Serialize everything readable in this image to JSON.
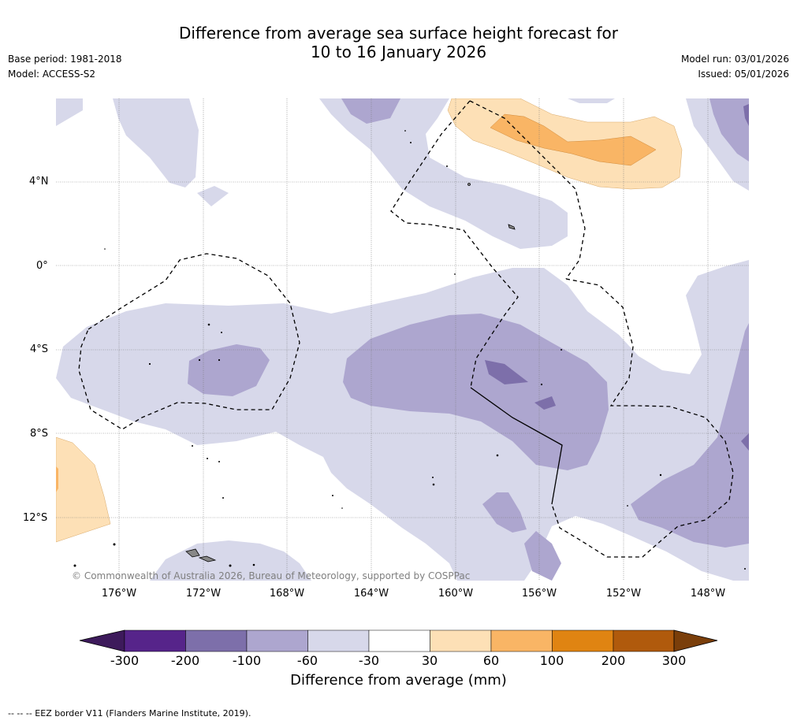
{
  "title": {
    "line1": "Difference from average sea surface height forecast for",
    "line2": "10 to 16 January 2026"
  },
  "meta": {
    "base_period": "Base period: 1981-2018",
    "model": "Model: ACCESS-S2",
    "model_run": "Model run: 03/01/2026",
    "issued": "Issued: 05/01/2026"
  },
  "map": {
    "latitude_labels": [
      "4°N",
      "0°",
      "4°S",
      "8°S",
      "12°S"
    ],
    "longitude_labels": [
      "176°W",
      "172°W",
      "168°W",
      "164°W",
      "160°W",
      "156°W",
      "152°W",
      "148°W"
    ],
    "copyright": "© Commonwealth of Australia 2026, Bureau of Meteorology, supported by COSPPac"
  },
  "colorbar": {
    "label": "Difference from average (mm)",
    "ticks": [
      "-300",
      "-200",
      "-100",
      "-60",
      "-30",
      "30",
      "60",
      "100",
      "200",
      "300"
    ],
    "colors": [
      "#3d1a5b",
      "#56248a",
      "#7d6faa",
      "#ada6cf",
      "#d7d8ea",
      "#ffffff",
      "#fde0b6",
      "#f9b565",
      "#e08412",
      "#b05a0c",
      "#7a3e0a"
    ]
  },
  "footnote": "--  --  -- EEZ border V11 (Flanders Marine Institute, 2019)."
}
